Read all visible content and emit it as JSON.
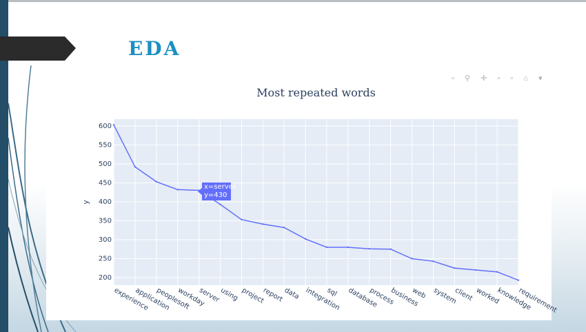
{
  "slide": {
    "title": "EDA"
  },
  "chart_data": {
    "type": "line",
    "title": "Most repeated words",
    "xlabel": "",
    "ylabel": "y",
    "categories": [
      "experience",
      "application",
      "peoplesoft",
      "workday",
      "server",
      "using",
      "project",
      "report",
      "data",
      "integration",
      "sql",
      "database",
      "process",
      "business",
      "web",
      "system",
      "client",
      "worked",
      "knowledge",
      "requirement"
    ],
    "series": [
      {
        "values": [
          603,
          492,
          453,
          432,
          430,
          393,
          353,
          341,
          332,
          302,
          280,
          280,
          276,
          275,
          250,
          243,
          225,
          220,
          215,
          193
        ]
      }
    ],
    "yticks": [
      200,
      250,
      300,
      350,
      400,
      450,
      500,
      550,
      600
    ],
    "ylim": [
      180,
      618
    ],
    "grid": true,
    "line_color": "#636efa",
    "plot_bg": "#e5ecf6"
  },
  "tooltip": {
    "line1": "x=server",
    "line2": "y=430"
  }
}
